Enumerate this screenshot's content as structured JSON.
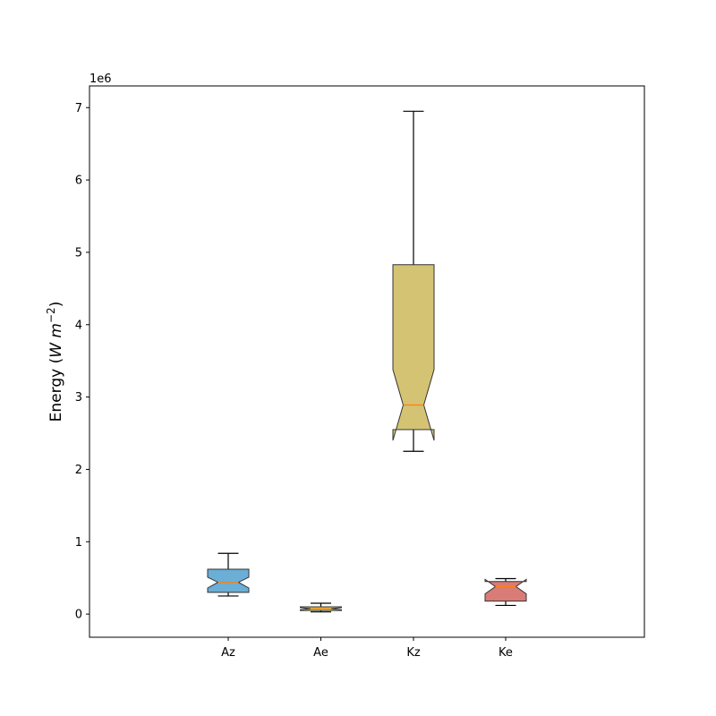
{
  "chart_data": {
    "type": "boxplot",
    "notched": true,
    "ylabel_main": "Energy (",
    "ylabel_math": "W m",
    "ylabel_exp": "−2",
    "ylabel_close": ")",
    "offset_text": "1e6",
    "ylim": [
      -320000,
      7300000
    ],
    "y_ticks": [
      {
        "value": 0,
        "label": "0"
      },
      {
        "value": 1000000,
        "label": "1"
      },
      {
        "value": 2000000,
        "label": "2"
      },
      {
        "value": 3000000,
        "label": "3"
      },
      {
        "value": 4000000,
        "label": "4"
      },
      {
        "value": 5000000,
        "label": "5"
      },
      {
        "value": 6000000,
        "label": "6"
      },
      {
        "value": 7000000,
        "label": "7"
      }
    ],
    "categories": [
      "Az",
      "Ae",
      "Kz",
      "Ke"
    ],
    "boxes": [
      {
        "name": "Az",
        "color": "#6baed6",
        "whislo": 250000,
        "q1": 300000,
        "notch_lo": 360000,
        "med": 440000,
        "notch_hi": 510000,
        "q3": 620000,
        "whishi": 840000
      },
      {
        "name": "Ae",
        "color": "#c7c85f",
        "whislo": 30000,
        "q1": 50000,
        "notch_lo": 60000,
        "med": 75000,
        "notch_hi": 90000,
        "q3": 100000,
        "whishi": 150000
      },
      {
        "name": "Kz",
        "color": "#d4c373",
        "whislo": 2250000,
        "q1": 2550000,
        "notch_lo": 2400000,
        "med": 2890000,
        "notch_hi": 3380000,
        "q3": 4830000,
        "whishi": 6950000
      },
      {
        "name": "Ke",
        "color": "#d97b76",
        "whislo": 120000,
        "q1": 180000,
        "notch_lo": 280000,
        "med": 380000,
        "notch_hi": 480000,
        "q3": 450000,
        "whishi": 490000
      }
    ],
    "median_color": "#ff7f0e",
    "grid": false,
    "legend": "none"
  }
}
